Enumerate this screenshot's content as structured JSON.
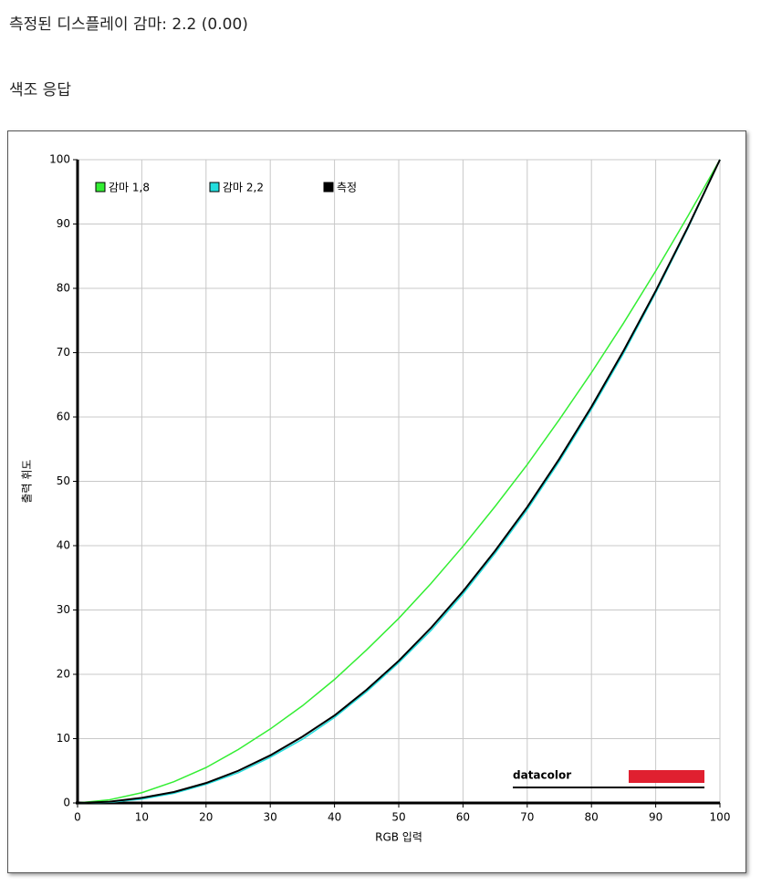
{
  "page": {
    "heading": "측정된 디스플레이 감마: 2.2 (0.00)",
    "section": "색조 응답",
    "logo": "datacolor"
  },
  "chart_data": {
    "type": "line",
    "x_label": "RGB 입력",
    "y_label": "출력 휘도",
    "x": [
      0,
      5,
      10,
      15,
      20,
      25,
      30,
      35,
      40,
      45,
      50,
      55,
      60,
      65,
      70,
      75,
      80,
      85,
      90,
      95,
      100
    ],
    "series": [
      {
        "name": "감마 1,8",
        "color": "#33ee33",
        "values": [
          0,
          0.5,
          1.6,
          3.3,
          5.5,
          8.3,
          11.5,
          15.1,
          19.2,
          23.8,
          28.7,
          34.1,
          39.9,
          46.1,
          52.6,
          59.6,
          66.9,
          74.6,
          82.7,
          91.2,
          100
        ]
      },
      {
        "name": "감마 2,2",
        "color": "#22dddd",
        "values": [
          0,
          0.1,
          0.6,
          1.5,
          2.9,
          4.7,
          7.1,
          9.9,
          13.3,
          17.3,
          21.8,
          26.8,
          32.5,
          38.8,
          45.6,
          53.1,
          61.2,
          69.9,
          79.3,
          89.3,
          100
        ]
      },
      {
        "name": "측정",
        "color": "#000000",
        "values": [
          0,
          0.2,
          0.8,
          1.7,
          3.1,
          5.0,
          7.4,
          10.3,
          13.6,
          17.6,
          22.1,
          27.2,
          32.9,
          39.2,
          46.0,
          53.5,
          61.6,
          70.3,
          79.6,
          89.5,
          100
        ]
      }
    ],
    "xlim": [
      0,
      100
    ],
    "ylim": [
      0,
      100
    ],
    "xticks": [
      0,
      10,
      20,
      30,
      40,
      50,
      60,
      70,
      80,
      90,
      100
    ],
    "yticks": [
      0,
      10,
      20,
      30,
      40,
      50,
      60,
      70,
      80,
      90,
      100
    ],
    "grid": true,
    "legend": "top-left"
  }
}
